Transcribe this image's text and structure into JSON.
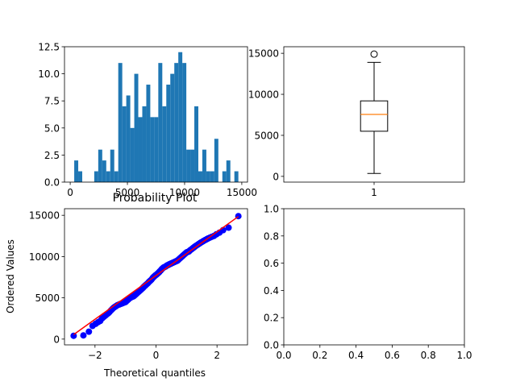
{
  "figure": {
    "background": "#ffffff"
  },
  "chart_data": [
    {
      "id": "hist",
      "type": "bar",
      "title": "",
      "xlabel": "",
      "ylabel": "",
      "xlim": [
        -500,
        15500
      ],
      "ylim": [
        0,
        12.5
      ],
      "bin_width": 350,
      "bins_start": 350,
      "values": [
        2,
        1,
        0,
        0,
        0,
        1,
        3,
        2,
        1,
        3,
        1,
        11,
        7,
        8,
        5,
        10,
        6,
        7,
        9,
        6,
        6,
        11,
        7,
        9,
        10,
        11,
        12,
        11,
        3,
        3,
        7,
        1,
        3,
        1,
        1,
        4,
        0,
        1,
        2,
        0,
        1,
        0
      ],
      "xticks": [
        0,
        5000,
        10000,
        15000
      ],
      "xtick_labels": [
        "0",
        "5000",
        "10000",
        "15000"
      ],
      "yticks": [
        0,
        2.5,
        5.0,
        7.5,
        10.0,
        12.5
      ],
      "ytick_labels": [
        "0.0",
        "2.5",
        "5.0",
        "7.5",
        "10.0",
        "12.5"
      ],
      "color": "#1f77b4"
    },
    {
      "id": "box",
      "type": "box",
      "title": "",
      "xlim": [
        0.5,
        1.5
      ],
      "ylim": [
        -700,
        15800
      ],
      "box": {
        "position": 1,
        "whisker_low": 350,
        "q1": 5500,
        "median": 7550,
        "q3": 9200,
        "whisker_high": 13900,
        "outliers": [
          14900
        ]
      },
      "xticks": [
        1
      ],
      "xtick_labels": [
        "1"
      ],
      "yticks": [
        0,
        5000,
        10000,
        15000
      ],
      "ytick_labels": [
        "0",
        "5000",
        "10000",
        "15000"
      ],
      "median_color": "#ff7f0e"
    },
    {
      "id": "probplot",
      "type": "scatter",
      "title": "Probability Plot",
      "xlabel": "Theoretical quantiles",
      "ylabel": "Ordered Values",
      "xlim": [
        -3.0,
        3.0
      ],
      "ylim": [
        -700,
        15800
      ],
      "points": [
        [
          -2.7,
          400
        ],
        [
          -2.38,
          450
        ],
        [
          -2.2,
          900
        ],
        [
          -2.08,
          1600
        ],
        [
          -1.98,
          1850
        ],
        [
          -1.9,
          2050
        ],
        [
          -1.83,
          2200
        ],
        [
          -1.77,
          2500
        ],
        [
          -1.71,
          2700
        ],
        [
          -1.66,
          2850
        ],
        [
          -1.61,
          3000
        ],
        [
          -1.56,
          3150
        ],
        [
          -1.52,
          3300
        ],
        [
          -1.47,
          3500
        ],
        [
          -1.43,
          3650
        ],
        [
          -1.39,
          3800
        ],
        [
          -1.35,
          3900
        ],
        [
          -1.31,
          4000
        ],
        [
          -1.27,
          4100
        ],
        [
          -1.24,
          4150
        ],
        [
          -1.2,
          4200
        ],
        [
          -1.17,
          4250
        ],
        [
          -1.13,
          4300
        ],
        [
          -1.1,
          4350
        ],
        [
          -1.07,
          4400
        ],
        [
          -1.03,
          4450
        ],
        [
          -1.0,
          4500
        ],
        [
          -0.97,
          4600
        ],
        [
          -0.94,
          4700
        ],
        [
          -0.91,
          4800
        ],
        [
          -0.88,
          4900
        ],
        [
          -0.85,
          5000
        ],
        [
          -0.82,
          5050
        ],
        [
          -0.79,
          5100
        ],
        [
          -0.76,
          5150
        ],
        [
          -0.73,
          5200
        ],
        [
          -0.7,
          5300
        ],
        [
          -0.67,
          5400
        ],
        [
          -0.64,
          5500
        ],
        [
          -0.61,
          5600
        ],
        [
          -0.58,
          5700
        ],
        [
          -0.55,
          5800
        ],
        [
          -0.52,
          5900
        ],
        [
          -0.49,
          6000
        ],
        [
          -0.46,
          6100
        ],
        [
          -0.43,
          6200
        ],
        [
          -0.41,
          6300
        ],
        [
          -0.38,
          6400
        ],
        [
          -0.35,
          6500
        ],
        [
          -0.32,
          6600
        ],
        [
          -0.29,
          6700
        ],
        [
          -0.26,
          6800
        ],
        [
          -0.24,
          6900
        ],
        [
          -0.21,
          7000
        ],
        [
          -0.18,
          7100
        ],
        [
          -0.15,
          7200
        ],
        [
          -0.12,
          7350
        ],
        [
          -0.1,
          7450
        ],
        [
          -0.07,
          7550
        ],
        [
          -0.04,
          7650
        ],
        [
          -0.01,
          7750
        ],
        [
          0.01,
          7800
        ],
        [
          0.04,
          7900
        ],
        [
          0.07,
          8000
        ],
        [
          0.1,
          8100
        ],
        [
          0.12,
          8200
        ],
        [
          0.15,
          8300
        ],
        [
          0.18,
          8450
        ],
        [
          0.21,
          8550
        ],
        [
          0.24,
          8650
        ],
        [
          0.26,
          8700
        ],
        [
          0.29,
          8750
        ],
        [
          0.32,
          8800
        ],
        [
          0.35,
          8900
        ],
        [
          0.38,
          8950
        ],
        [
          0.41,
          9000
        ],
        [
          0.43,
          9050
        ],
        [
          0.46,
          9100
        ],
        [
          0.49,
          9150
        ],
        [
          0.52,
          9200
        ],
        [
          0.55,
          9250
        ],
        [
          0.58,
          9300
        ],
        [
          0.61,
          9350
        ],
        [
          0.64,
          9400
        ],
        [
          0.67,
          9450
        ],
        [
          0.7,
          9500
        ],
        [
          0.73,
          9600
        ],
        [
          0.76,
          9700
        ],
        [
          0.79,
          9800
        ],
        [
          0.82,
          9900
        ],
        [
          0.85,
          10000
        ],
        [
          0.88,
          10100
        ],
        [
          0.91,
          10200
        ],
        [
          0.94,
          10300
        ],
        [
          0.97,
          10400
        ],
        [
          1.0,
          10500
        ],
        [
          1.03,
          10550
        ],
        [
          1.07,
          10600
        ],
        [
          1.1,
          10700
        ],
        [
          1.13,
          10800
        ],
        [
          1.17,
          10900
        ],
        [
          1.2,
          11000
        ],
        [
          1.24,
          11100
        ],
        [
          1.27,
          11200
        ],
        [
          1.31,
          11300
        ],
        [
          1.35,
          11400
        ],
        [
          1.39,
          11500
        ],
        [
          1.43,
          11600
        ],
        [
          1.47,
          11700
        ],
        [
          1.52,
          11800
        ],
        [
          1.56,
          11900
        ],
        [
          1.61,
          12000
        ],
        [
          1.66,
          12100
        ],
        [
          1.71,
          12200
        ],
        [
          1.77,
          12300
        ],
        [
          1.83,
          12400
        ],
        [
          1.9,
          12500
        ],
        [
          1.98,
          12700
        ],
        [
          2.08,
          12900
        ],
        [
          2.2,
          13200
        ],
        [
          2.38,
          13500
        ],
        [
          2.7,
          14900
        ]
      ],
      "fit_line": {
        "slope": 2650,
        "intercept": 7700,
        "color": "#ff0000"
      },
      "marker_color": "#0000ff",
      "xticks": [
        -2,
        0,
        2
      ],
      "xtick_labels": [
        "−2",
        "0",
        "2"
      ],
      "yticks": [
        0,
        5000,
        10000,
        15000
      ],
      "ytick_labels": [
        "0",
        "5000",
        "10000",
        "15000"
      ]
    },
    {
      "id": "empty",
      "type": "scatter",
      "title": "",
      "xlim": [
        0,
        1
      ],
      "ylim": [
        0,
        1
      ],
      "xticks": [
        0,
        0.2,
        0.4,
        0.6,
        0.8,
        1.0
      ],
      "xtick_labels": [
        "0.0",
        "0.2",
        "0.4",
        "0.6",
        "0.8",
        "1.0"
      ],
      "yticks": [
        0,
        0.2,
        0.4,
        0.6,
        0.8,
        1.0
      ],
      "ytick_labels": [
        "0.0",
        "0.2",
        "0.4",
        "0.6",
        "0.8",
        "1.0"
      ]
    }
  ]
}
